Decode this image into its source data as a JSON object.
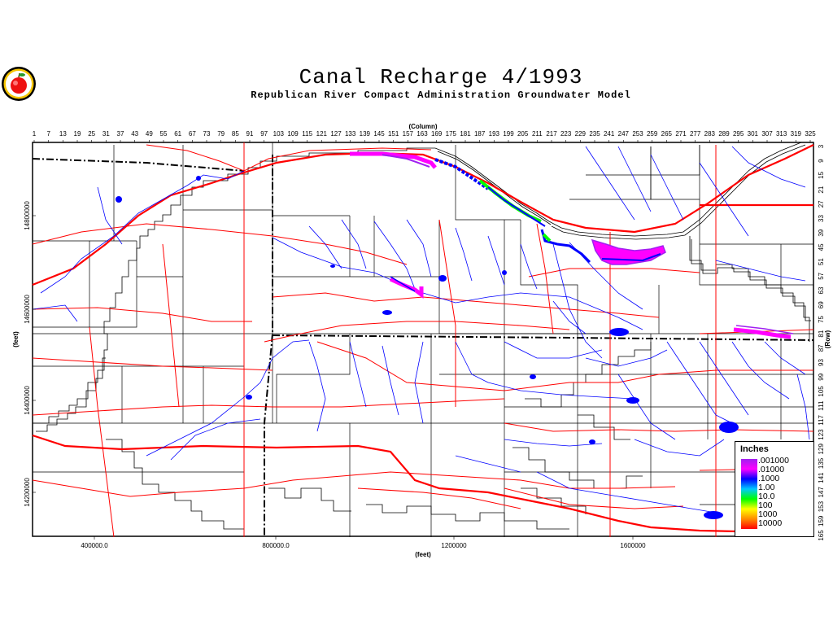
{
  "header": {
    "title": "Canal Recharge 4/1993",
    "subtitle": "Republican River Compact Administration Groundwater Model",
    "logo_icon": "apple-seal-icon"
  },
  "axes": {
    "top_label": "(Column)",
    "top_ticks": [
      "1",
      "7",
      "13",
      "19",
      "25",
      "31",
      "37",
      "43",
      "49",
      "55",
      "61",
      "67",
      "73",
      "79",
      "85",
      "91",
      "97",
      "103",
      "109",
      "115",
      "121",
      "127",
      "133",
      "139",
      "145",
      "151",
      "157",
      "163",
      "169",
      "175",
      "181",
      "187",
      "193",
      "199",
      "205",
      "211",
      "217",
      "223",
      "229",
      "235",
      "241",
      "247",
      "253",
      "259",
      "265",
      "271",
      "277",
      "283",
      "289",
      "295",
      "301",
      "307",
      "313",
      "319",
      "325"
    ],
    "right_label": "(Row)",
    "right_ticks": [
      "3",
      "9",
      "15",
      "21",
      "27",
      "33",
      "39",
      "45",
      "51",
      "57",
      "63",
      "69",
      "75",
      "81",
      "87",
      "93",
      "99",
      "105",
      "111",
      "117",
      "123",
      "129",
      "135",
      "141",
      "147",
      "153",
      "159",
      "165"
    ],
    "left_label": "(feet)",
    "left_ticks": [
      "14800000",
      "14600000",
      "14400000",
      "14200000"
    ],
    "bottom_label": "(feet)",
    "bottom_ticks": [
      "400000.0",
      "800000.0",
      "1200000",
      "1600000"
    ]
  },
  "legend": {
    "title": "Inches",
    "labels": [
      ".001000",
      ".01000",
      ".1000",
      "1.00",
      "10.0",
      "100",
      "1000",
      "10000"
    ],
    "colors": [
      "#a020f0",
      "#ff00ff",
      "#0000ff",
      "#00c8ff",
      "#00ff00",
      "#ffff00",
      "#ff8c00",
      "#ff0000"
    ]
  },
  "colors": {
    "rivers": "#0000ff",
    "roads": "#ff0000",
    "state_border": "#000000",
    "grid": "#000000",
    "recharge_low": "#ff00ff",
    "recharge_mid": "#0000ff",
    "recharge_high": "#00ff00"
  }
}
